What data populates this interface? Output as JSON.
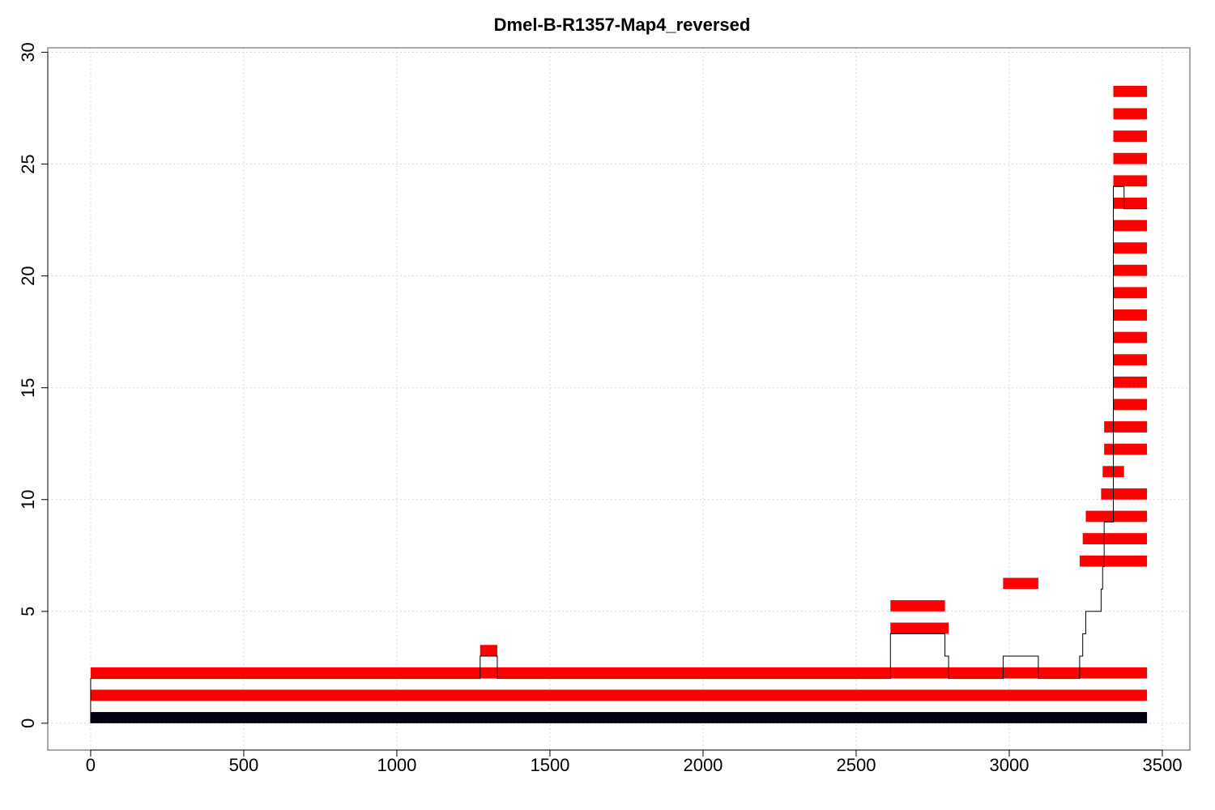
{
  "chart_data": {
    "type": "bar",
    "title": "Dmel-B-R1357-Map4_reversed",
    "xlabel": "",
    "ylabel": "",
    "xlim": [
      -140,
      3590
    ],
    "ylim": [
      -1.2,
      30.2
    ],
    "xticks": [
      0,
      500,
      1000,
      1500,
      2000,
      2500,
      3000,
      3500
    ],
    "yticks": [
      0,
      5,
      10,
      15,
      20,
      25,
      30
    ],
    "grid": true,
    "colors": {
      "reference_bar": "#000010",
      "read_bar": "#ff0000",
      "coverage_line": "#000000"
    },
    "reference": {
      "start": 0,
      "end": 3450,
      "row": 0
    },
    "reads": [
      {
        "row": 1,
        "start": 0,
        "end": 3450
      },
      {
        "row": 2,
        "start": 0,
        "end": 3450
      },
      {
        "row": 3,
        "start": 1272,
        "end": 1328
      },
      {
        "row": 4,
        "start": 2612,
        "end": 2802
      },
      {
        "row": 5,
        "start": 2612,
        "end": 2790
      },
      {
        "row": 6,
        "start": 2980,
        "end": 3095
      },
      {
        "row": 7,
        "start": 3230,
        "end": 3450
      },
      {
        "row": 8,
        "start": 3240,
        "end": 3450
      },
      {
        "row": 9,
        "start": 3250,
        "end": 3450
      },
      {
        "row": 10,
        "start": 3300,
        "end": 3450
      },
      {
        "row": 11,
        "start": 3305,
        "end": 3375
      },
      {
        "row": 12,
        "start": 3310,
        "end": 3450
      },
      {
        "row": 13,
        "start": 3310,
        "end": 3450
      },
      {
        "row": 14,
        "start": 3340,
        "end": 3450
      },
      {
        "row": 15,
        "start": 3340,
        "end": 3450
      },
      {
        "row": 16,
        "start": 3340,
        "end": 3450
      },
      {
        "row": 17,
        "start": 3340,
        "end": 3450
      },
      {
        "row": 18,
        "start": 3340,
        "end": 3450
      },
      {
        "row": 19,
        "start": 3340,
        "end": 3450
      },
      {
        "row": 20,
        "start": 3340,
        "end": 3450
      },
      {
        "row": 21,
        "start": 3340,
        "end": 3450
      },
      {
        "row": 22,
        "start": 3340,
        "end": 3450
      },
      {
        "row": 23,
        "start": 3340,
        "end": 3450
      },
      {
        "row": 24,
        "start": 3340,
        "end": 3450
      },
      {
        "row": 25,
        "start": 3340,
        "end": 3450
      },
      {
        "row": 26,
        "start": 3340,
        "end": 3450
      },
      {
        "row": 27,
        "start": 3340,
        "end": 3450
      },
      {
        "row": 28,
        "start": 3340,
        "end": 3450
      }
    ],
    "coverage": [
      [
        0,
        0
      ],
      [
        0,
        2
      ],
      [
        1272,
        2
      ],
      [
        1272,
        3
      ],
      [
        1328,
        3
      ],
      [
        1328,
        2
      ],
      [
        2612,
        2
      ],
      [
        2612,
        4
      ],
      [
        2790,
        4
      ],
      [
        2790,
        3
      ],
      [
        2802,
        3
      ],
      [
        2802,
        2
      ],
      [
        2980,
        2
      ],
      [
        2980,
        3
      ],
      [
        3095,
        3
      ],
      [
        3095,
        2
      ],
      [
        3230,
        2
      ],
      [
        3230,
        3
      ],
      [
        3240,
        3
      ],
      [
        3240,
        4
      ],
      [
        3250,
        4
      ],
      [
        3250,
        5
      ],
      [
        3300,
        5
      ],
      [
        3300,
        6
      ],
      [
        3305,
        6
      ],
      [
        3305,
        7
      ],
      [
        3310,
        7
      ],
      [
        3310,
        9
      ],
      [
        3340,
        9
      ],
      [
        3340,
        24
      ],
      [
        3375,
        24
      ],
      [
        3375,
        23
      ],
      [
        3450,
        23
      ]
    ]
  }
}
